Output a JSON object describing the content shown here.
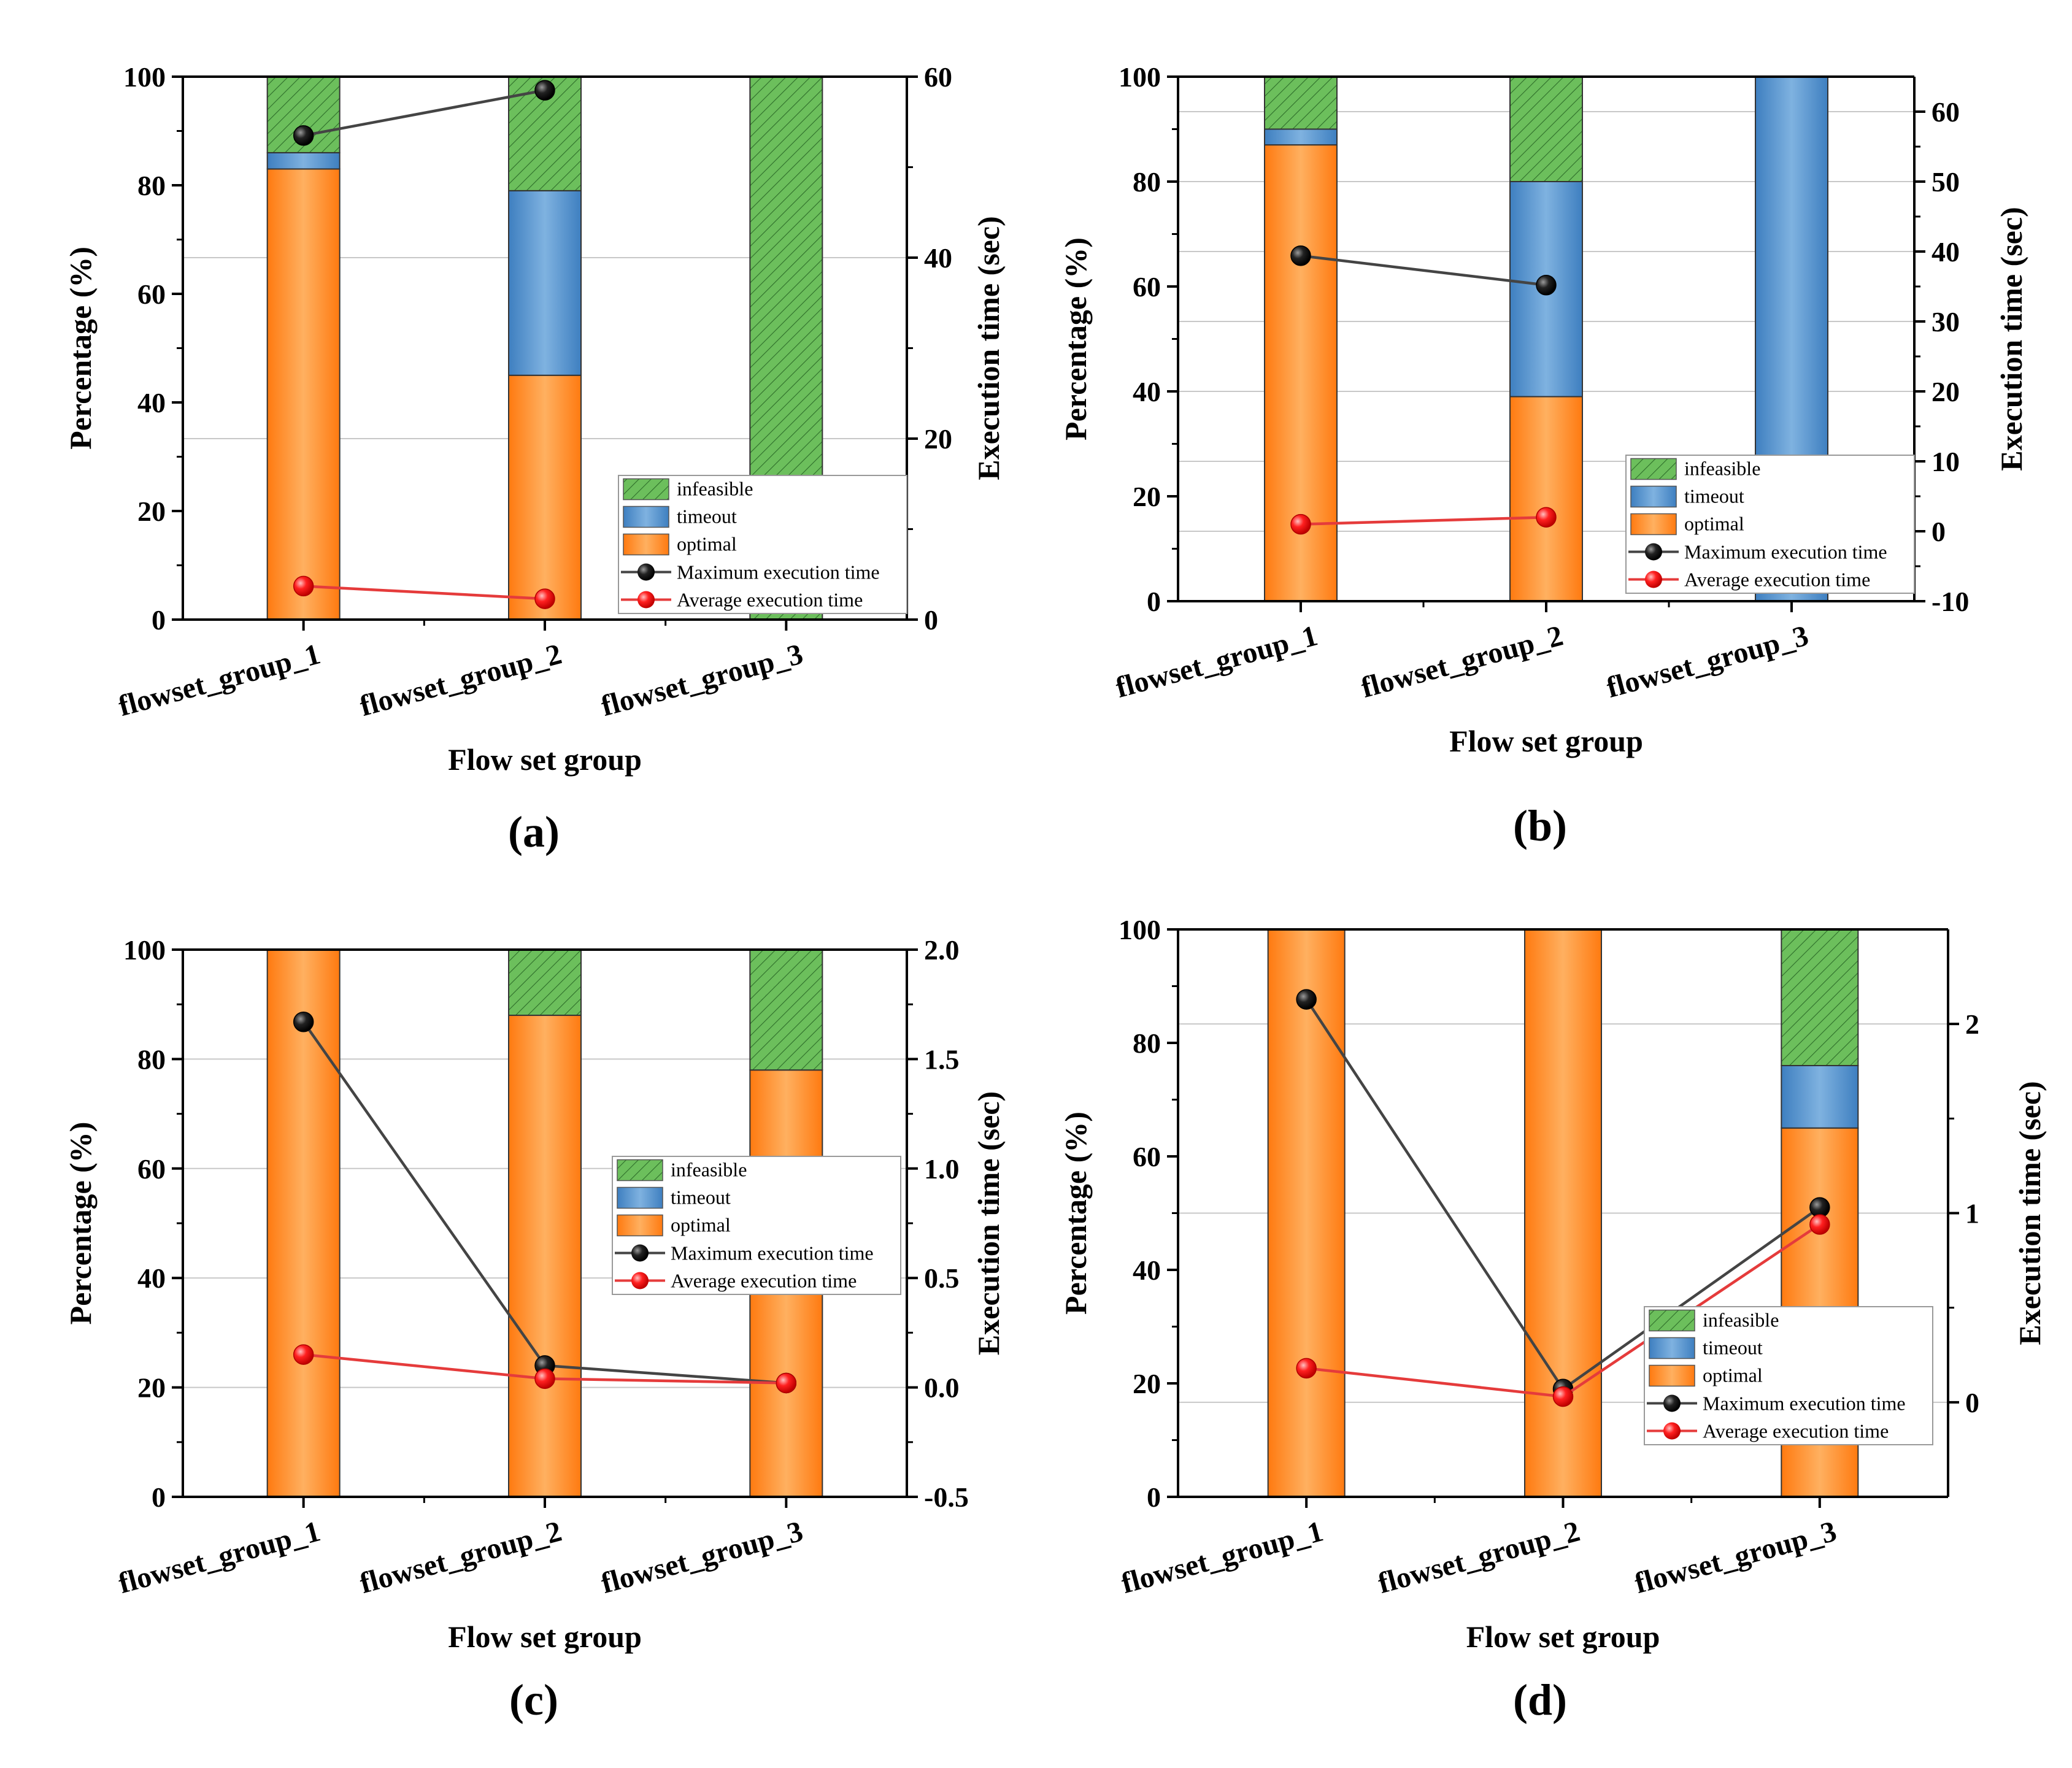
{
  "figure": {
    "legend_labels": {
      "infeasible": "infeasible",
      "timeout": "timeout",
      "optimal": "optimal",
      "max": "Maximum execution time",
      "avg": "Average execution time"
    },
    "colors": {
      "optimal": "#FF8A1E",
      "timeout": "#4F8FCB",
      "infeasible": "#6CBF5C",
      "max_line": "#444444",
      "avg_line": "#E53B3B",
      "max_marker": "#111111",
      "avg_marker": "#FF1A1A",
      "gridline": "#C8C8C8"
    }
  },
  "chart_data": [
    {
      "type": "bar",
      "panel_label": "(a)",
      "xlabel": "Flow set group",
      "ylabel": "Percentage (%)",
      "y2label": "Execution time (sec)",
      "categories": [
        "flowset_group_1",
        "flowset_group_2",
        "flowset_group_3"
      ],
      "ylim": [
        0,
        100
      ],
      "yticks": [
        "0",
        "20",
        "40",
        "60",
        "80",
        "100"
      ],
      "y2lim": [
        0,
        60
      ],
      "y2ticks": [
        "0",
        "20",
        "40",
        "60"
      ],
      "series": [
        {
          "name": "optimal",
          "values": [
            83,
            45,
            0
          ]
        },
        {
          "name": "timeout",
          "values": [
            3,
            34,
            0
          ]
        },
        {
          "name": "infeasible",
          "values": [
            14,
            21,
            100
          ]
        }
      ],
      "lines": [
        {
          "name": "Maximum execution time",
          "values": [
            53.5,
            58.5
          ]
        },
        {
          "name": "Average execution time",
          "values": [
            3.7,
            2.3
          ]
        }
      ]
    },
    {
      "type": "bar",
      "panel_label": "(b)",
      "xlabel": "Flow set group",
      "ylabel": "Percentage (%)",
      "y2label": "Execution time (sec)",
      "categories": [
        "flowset_group_1",
        "flowset_group_2",
        "flowset_group_3"
      ],
      "ylim": [
        0,
        100
      ],
      "yticks": [
        "0",
        "20",
        "40",
        "60",
        "80",
        "100"
      ],
      "y2lim": [
        -10,
        65
      ],
      "y2ticks": [
        "-10",
        "0",
        "10",
        "20",
        "30",
        "40",
        "50",
        "60"
      ],
      "series": [
        {
          "name": "optimal",
          "values": [
            87,
            39,
            0
          ]
        },
        {
          "name": "timeout",
          "values": [
            3,
            41,
            100
          ]
        },
        {
          "name": "infeasible",
          "values": [
            10,
            20,
            0
          ]
        }
      ],
      "lines": [
        {
          "name": "Maximum execution time",
          "values": [
            39.4,
            35.2
          ]
        },
        {
          "name": "Average execution time",
          "values": [
            1.0,
            2.0
          ]
        }
      ]
    },
    {
      "type": "bar",
      "panel_label": "(c)",
      "xlabel": "Flow set group",
      "ylabel": "Percentage (%)",
      "y2label": "Execution time (sec)",
      "categories": [
        "flowset_group_1",
        "flowset_group_2",
        "flowset_group_3"
      ],
      "ylim": [
        0,
        100
      ],
      "yticks": [
        "0",
        "20",
        "40",
        "60",
        "80",
        "100"
      ],
      "y2lim": [
        -0.5,
        2.0
      ],
      "y2ticks": [
        "-0.5",
        "0.0",
        "0.5",
        "1.0",
        "1.5",
        "2.0"
      ],
      "series": [
        {
          "name": "optimal",
          "values": [
            100,
            88,
            78
          ]
        },
        {
          "name": "timeout",
          "values": [
            0,
            0,
            0
          ]
        },
        {
          "name": "infeasible",
          "values": [
            0,
            12,
            22
          ]
        }
      ],
      "lines": [
        {
          "name": "Maximum execution time",
          "values": [
            1.67,
            0.1,
            0.02
          ]
        },
        {
          "name": "Average execution time",
          "values": [
            0.15,
            0.04,
            0.02
          ]
        }
      ]
    },
    {
      "type": "bar",
      "panel_label": "(d)",
      "xlabel": "Flow set group",
      "ylabel": "Percentage (%)",
      "y2label": "Execution time (sec)",
      "categories": [
        "flowset_group_1",
        "flowset_group_2",
        "flowset_group_3"
      ],
      "ylim": [
        0,
        100
      ],
      "yticks": [
        "0",
        "20",
        "40",
        "60",
        "80",
        "100"
      ],
      "y2lim": [
        -0.5,
        2.5
      ],
      "y2ticks": [
        "0",
        "1",
        "2"
      ],
      "series": [
        {
          "name": "optimal",
          "values": [
            100,
            100,
            65
          ]
        },
        {
          "name": "timeout",
          "values": [
            0,
            0,
            11
          ]
        },
        {
          "name": "infeasible",
          "values": [
            0,
            0,
            24
          ]
        }
      ],
      "lines": [
        {
          "name": "Maximum execution time",
          "values": [
            2.13,
            0.07,
            1.03
          ]
        },
        {
          "name": "Average execution time",
          "values": [
            0.18,
            0.03,
            0.94
          ]
        }
      ]
    }
  ]
}
